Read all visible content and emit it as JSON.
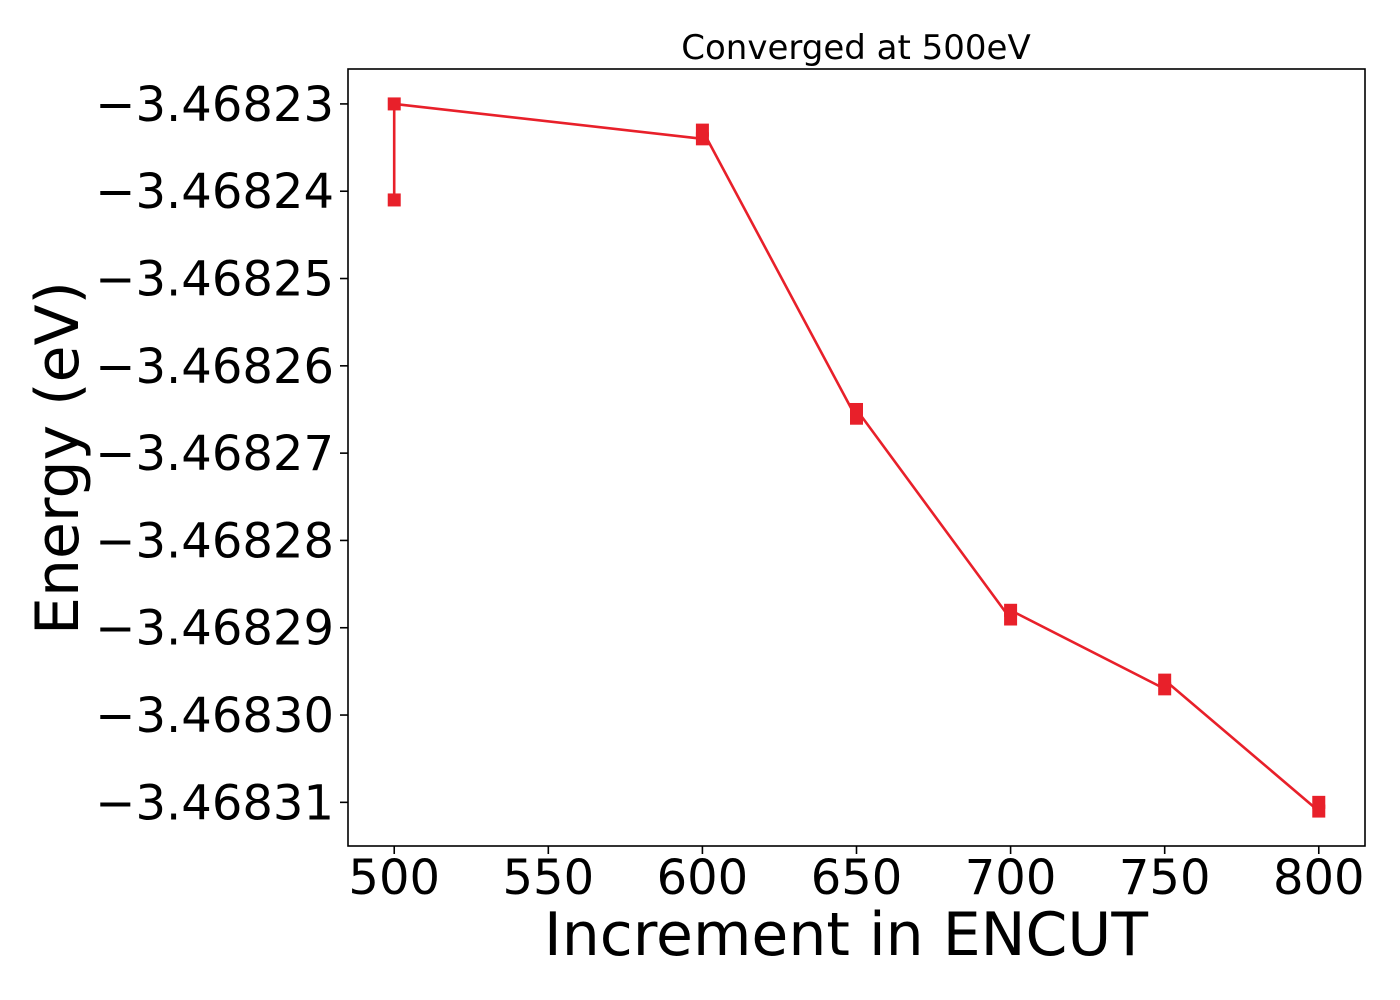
{
  "chart_data": {
    "type": "line",
    "title": "Converged at 500eV",
    "xlabel": "Increment in ENCUT",
    "ylabel": "Energy (eV)",
    "xlim": [
      485,
      815
    ],
    "ylim": [
      -3.468315,
      -3.468226
    ],
    "xticks": [
      500,
      550,
      600,
      650,
      700,
      750,
      800
    ],
    "xtick_labels": [
      "500",
      "550",
      "600",
      "650",
      "700",
      "750",
      "800"
    ],
    "yticks": [
      -3.46823,
      -3.46824,
      -3.46825,
      -3.46826,
      -3.46827,
      -3.46828,
      -3.46829,
      -3.4683,
      -3.46831
    ],
    "ytick_labels": [
      "−3.46823",
      "−3.46824",
      "−3.46825",
      "−3.46826",
      "−3.46827",
      "−3.46828",
      "−3.46829",
      "−3.46830",
      "−3.46831"
    ],
    "grid": false,
    "series": [
      {
        "color": "#e8202a",
        "marker": "square",
        "points": [
          {
            "x": 500,
            "y": -3.468241
          },
          {
            "x": 500,
            "y": -3.46823
          },
          {
            "x": 600,
            "y": -3.468234
          },
          {
            "x": 600,
            "y": -3.468233
          },
          {
            "x": 650,
            "y": -3.468266
          },
          {
            "x": 650,
            "y": -3.468265
          },
          {
            "x": 700,
            "y": -3.468289
          },
          {
            "x": 700,
            "y": -3.468288
          },
          {
            "x": 750,
            "y": -3.468297
          },
          {
            "x": 750,
            "y": -3.468296
          },
          {
            "x": 800,
            "y": -3.468311
          },
          {
            "x": 800,
            "y": -3.46831
          }
        ]
      }
    ]
  }
}
